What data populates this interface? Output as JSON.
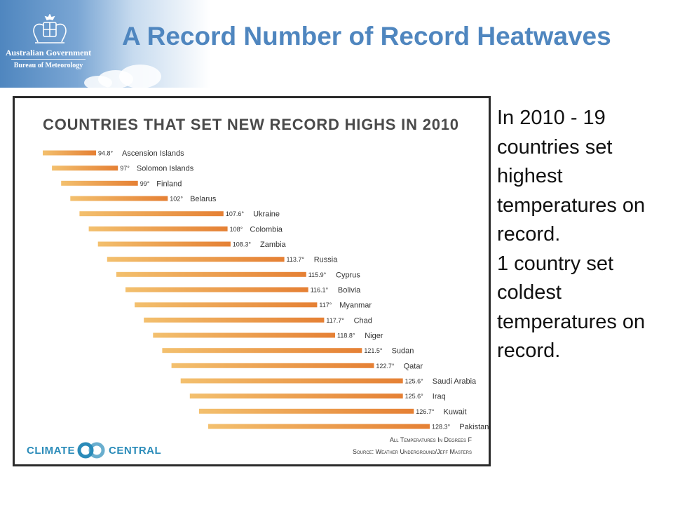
{
  "header": {
    "organization": "Australian Government",
    "bureau": "Bureau of Meteorology",
    "crest_icon": "coat-of-arms-icon",
    "banner_color": "#4f86bf"
  },
  "slide": {
    "title": "A Record Number of Record Heatwaves",
    "side_text": "In 2010 - 19 countries set highest temperatures on record.\n1 country set coldest temperatures on record."
  },
  "chart_data": {
    "type": "bar",
    "title": "Countries that set new record highs in 2010",
    "units": "°",
    "categories": [
      "Ascension Islands",
      "Solomon Islands",
      "Finland",
      "Belarus",
      "Ukraine",
      "Colombia",
      "Zambia",
      "Russia",
      "Cyprus",
      "Bolivia",
      "Myanmar",
      "Chad",
      "Niger",
      "Sudan",
      "Qatar",
      "Saudi Arabia",
      "Iraq",
      "Kuwait",
      "Pakistan"
    ],
    "values": [
      94.8,
      97,
      99,
      102,
      107.6,
      108,
      108.3,
      113.7,
      115.9,
      116.1,
      117,
      117.7,
      118.8,
      121.5,
      122.7,
      125.6,
      125.6,
      126.7,
      128.3
    ],
    "value_labels": [
      "94.8°",
      "97°",
      "99°",
      "102°",
      "107.6°",
      "108°",
      "108.3°",
      "113.7°",
      "115.9°",
      "116.1°",
      "117°",
      "117.7°",
      "118.8°",
      "121.5°",
      "122.7°",
      "125.6°",
      "125.6°",
      "126.7°",
      "128.3°"
    ],
    "bar_color_start": "#f3c06e",
    "bar_color_end": "#e58034",
    "footnote": "All Temperatures In Degrees F",
    "source": "Source: Weather Underground/Jeff Masters",
    "brand_left": "CLIMATE",
    "brand_right": "CENTRAL",
    "brand_icon": "climate-central-logo-icon",
    "brand_color": "#2a8bb9"
  }
}
